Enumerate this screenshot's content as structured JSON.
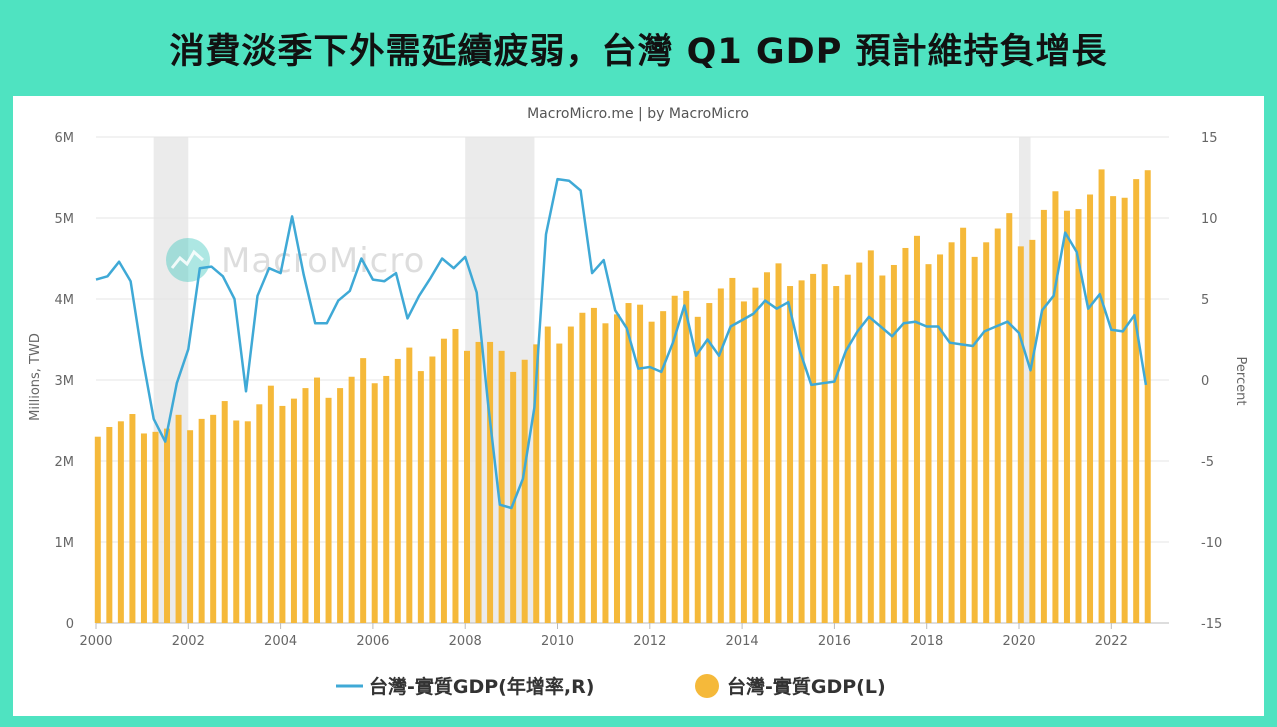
{
  "headline": "消費淡季下外需延續疲弱，台灣 Q1 GDP 預計維持負增長",
  "credit": "MacroMicro.me | by MacroMicro",
  "watermark": "MacroMicro",
  "colors": {
    "background": "#4fe3c1",
    "bar": "#f5b93a",
    "line": "#3fa9d6",
    "recession": "#e6e6e6"
  },
  "chart_data": {
    "type": "bar",
    "title": "",
    "x_axis": {
      "start": 2000.0,
      "end": 2023.25,
      "ticks": [
        "2000",
        "2002",
        "2004",
        "2006",
        "2008",
        "2010",
        "2012",
        "2014",
        "2016",
        "2018",
        "2020",
        "2022"
      ]
    },
    "left_axis": {
      "label": "Millions, TWD",
      "ylim": [
        0,
        6000000
      ],
      "ticks": [
        "0",
        "1M",
        "2M",
        "3M",
        "4M",
        "5M",
        "6M"
      ]
    },
    "right_axis": {
      "label": "Percent",
      "ylim": [
        -15,
        15
      ],
      "ticks": [
        "-15",
        "-10",
        "-5",
        "0",
        "5",
        "10",
        "15"
      ]
    },
    "grid": true,
    "legend": {
      "position": "bottom-center"
    },
    "recession_shading": [
      [
        2001.25,
        2002.0
      ],
      [
        2008.0,
        2009.5
      ],
      [
        2020.0,
        2020.25
      ]
    ],
    "series": [
      {
        "name": "台灣-實質GDP(年增率,R)",
        "type": "line",
        "axis": "right",
        "x_start": 2000.0,
        "x_step": 0.25,
        "values": [
          6.2,
          6.4,
          7.3,
          6.1,
          1.5,
          -2.4,
          -3.8,
          -0.2,
          1.9,
          6.9,
          7.0,
          6.4,
          5.0,
          -0.7,
          5.2,
          6.9,
          6.6,
          10.1,
          6.5,
          3.5,
          3.5,
          4.9,
          5.5,
          7.5,
          6.2,
          6.1,
          6.6,
          3.8,
          5.2,
          6.3,
          7.5,
          6.9,
          7.6,
          5.4,
          -1.6,
          -7.7,
          -7.9,
          -6.1,
          -1.7,
          9.0,
          12.4,
          12.3,
          11.7,
          6.6,
          7.4,
          4.3,
          3.2,
          0.7,
          0.8,
          0.5,
          2.3,
          4.6,
          1.5,
          2.5,
          1.5,
          3.3,
          3.7,
          4.1,
          4.9,
          4.4,
          4.8,
          1.8,
          -0.3,
          -0.2,
          -0.1,
          1.8,
          3.0,
          3.9,
          3.3,
          2.7,
          3.5,
          3.6,
          3.3,
          3.3,
          2.3,
          2.2,
          2.1,
          3.0,
          3.3,
          3.6,
          2.9,
          0.6,
          4.3,
          5.2,
          9.1,
          7.9,
          4.4,
          5.3,
          3.1,
          3.0,
          4.0,
          -0.3
        ]
      },
      {
        "name": "台灣-實質GDP(L)",
        "type": "bar",
        "axis": "left",
        "x_start": 2000.0,
        "x_step": 0.25,
        "values": [
          2300000,
          2420000,
          2490000,
          2580000,
          2340000,
          2360000,
          2400000,
          2570000,
          2380000,
          2520000,
          2570000,
          2740000,
          2500000,
          2490000,
          2700000,
          2930000,
          2680000,
          2770000,
          2900000,
          3030000,
          2780000,
          2900000,
          3040000,
          3270000,
          2960000,
          3050000,
          3260000,
          3400000,
          3110000,
          3290000,
          3510000,
          3630000,
          3360000,
          3470000,
          3470000,
          3360000,
          3100000,
          3250000,
          3440000,
          3660000,
          3450000,
          3660000,
          3830000,
          3890000,
          3700000,
          3810000,
          3950000,
          3930000,
          3720000,
          3850000,
          4040000,
          4100000,
          3780000,
          3950000,
          4130000,
          4260000,
          3970000,
          4140000,
          4330000,
          4440000,
          4160000,
          4230000,
          4310000,
          4430000,
          4160000,
          4300000,
          4450000,
          4600000,
          4290000,
          4420000,
          4630000,
          4780000,
          4430000,
          4550000,
          4700000,
          4880000,
          4520000,
          4700000,
          4870000,
          5060000,
          4650000,
          4730000,
          5100000,
          5330000,
          5090000,
          5110000,
          5290000,
          5600000,
          5270000,
          5250000,
          5480000,
          5590000
        ]
      }
    ]
  }
}
